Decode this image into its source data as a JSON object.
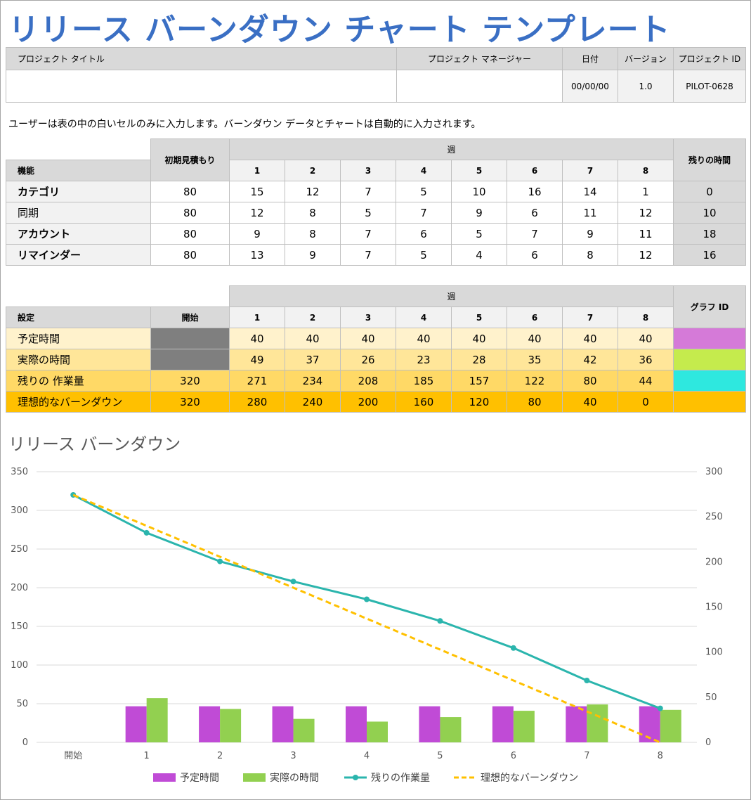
{
  "title": "リリース バーンダウン チャート テンプレート",
  "project": {
    "headers": [
      "プロジェクト タイトル",
      "プロジェクト マネージャー",
      "日付",
      "バージョン",
      "プロジェクト ID"
    ],
    "values": [
      "",
      "",
      "00/00/00",
      "1.0",
      "PILOT-0628"
    ]
  },
  "instructions": "ユーザーは表の中の白いセルのみに入力します。バーンダウン データとチャートは自動的に入力されます。",
  "features_table": {
    "col_feature": "機能",
    "col_initial": "初期見積もり",
    "col_weeks": "週",
    "col_remaining": "残りの時間",
    "weeks": [
      "1",
      "2",
      "3",
      "4",
      "5",
      "6",
      "7",
      "8"
    ],
    "rows": [
      {
        "name": "カテゴリ",
        "initial": "80",
        "weeks": [
          "15",
          "12",
          "7",
          "5",
          "10",
          "16",
          "14",
          "1"
        ],
        "remaining": "0"
      },
      {
        "name": "同期",
        "initial": "80",
        "weeks": [
          "12",
          "8",
          "5",
          "7",
          "9",
          "6",
          "11",
          "12"
        ],
        "remaining": "10"
      },
      {
        "name": "アカウント",
        "initial": "80",
        "weeks": [
          "9",
          "8",
          "7",
          "6",
          "5",
          "7",
          "9",
          "11"
        ],
        "remaining": "18"
      },
      {
        "name": "リマインダー",
        "initial": "80",
        "weeks": [
          "13",
          "9",
          "7",
          "5",
          "4",
          "6",
          "8",
          "12"
        ],
        "remaining": "16"
      }
    ]
  },
  "settings_table": {
    "col_setting": "設定",
    "col_start": "開始",
    "col_weeks": "週",
    "col_graph": "グラフ ID",
    "weeks": [
      "1",
      "2",
      "3",
      "4",
      "5",
      "6",
      "7",
      "8"
    ],
    "rows": [
      {
        "name": "予定時間",
        "start": "",
        "weeks": [
          "40",
          "40",
          "40",
          "40",
          "40",
          "40",
          "40",
          "40"
        ],
        "color": "#d57ad8"
      },
      {
        "name": "実際の時間",
        "start": "",
        "weeks": [
          "49",
          "37",
          "26",
          "23",
          "28",
          "35",
          "42",
          "36"
        ],
        "color": "#c5eb4d"
      },
      {
        "name": "残りの 作業量",
        "start": "320",
        "weeks": [
          "271",
          "234",
          "208",
          "185",
          "157",
          "122",
          "80",
          "44"
        ],
        "color": "#2ee8df"
      },
      {
        "name": "理想的なバーンダウン",
        "start": "320",
        "weeks": [
          "280",
          "240",
          "200",
          "160",
          "120",
          "80",
          "40",
          "0"
        ],
        "color": ""
      }
    ]
  },
  "chart_data": {
    "type": "bar",
    "title": "リリース バーンダウン",
    "categories": [
      "開始",
      "1",
      "2",
      "3",
      "4",
      "5",
      "6",
      "7",
      "8"
    ],
    "ylim_left": [
      0,
      350
    ],
    "yticks_left": [
      "0",
      "50",
      "100",
      "150",
      "200",
      "250",
      "300",
      "350"
    ],
    "ylim_right": [
      0,
      300
    ],
    "yticks_right": [
      "0",
      "50",
      "100",
      "150",
      "200",
      "250",
      "300"
    ],
    "grid": true,
    "legend_position": "bottom",
    "series": [
      {
        "name": "予定時間",
        "kind": "bar",
        "axis": "right",
        "color": "#c04bd6",
        "values": [
          null,
          40,
          40,
          40,
          40,
          40,
          40,
          40,
          40
        ]
      },
      {
        "name": "実際の時間",
        "kind": "bar",
        "axis": "right",
        "color": "#92d050",
        "values": [
          null,
          49,
          37,
          26,
          23,
          28,
          35,
          42,
          36
        ]
      },
      {
        "name": "残りの作業量",
        "kind": "line",
        "axis": "left",
        "color": "#2bb5ad",
        "values": [
          320,
          271,
          234,
          208,
          185,
          157,
          122,
          80,
          44
        ]
      },
      {
        "name": "理想的なバーンダウン",
        "kind": "dashed",
        "axis": "left",
        "color": "#ffc000",
        "values": [
          320,
          280,
          240,
          200,
          160,
          120,
          80,
          40,
          0
        ]
      }
    ]
  }
}
